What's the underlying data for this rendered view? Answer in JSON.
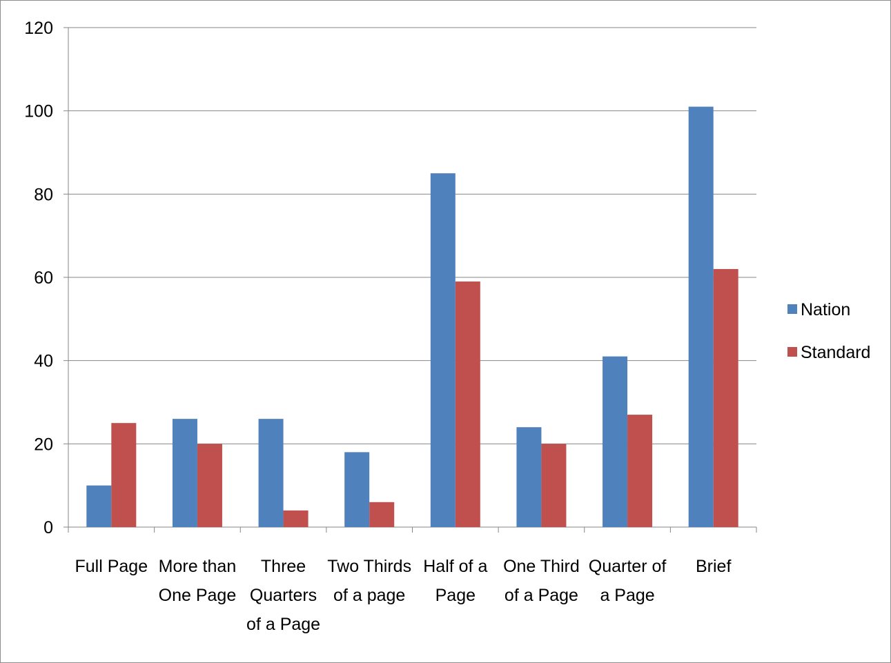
{
  "chart_data": {
    "type": "bar",
    "categories": [
      [
        "Full Page"
      ],
      [
        "More than",
        "One Page"
      ],
      [
        "Three",
        "Quarters",
        "of a Page"
      ],
      [
        "Two Thirds",
        "of a page"
      ],
      [
        "Half of a",
        "Page"
      ],
      [
        "One Third",
        "of a Page"
      ],
      [
        "Quarter of",
        "a Page"
      ],
      [
        "Brief"
      ]
    ],
    "series": [
      {
        "name": "Nation",
        "color": "#4f81bd",
        "values": [
          10,
          26,
          26,
          18,
          85,
          24,
          41,
          101
        ]
      },
      {
        "name": "Standard",
        "color": "#c0504d",
        "values": [
          25,
          20,
          4,
          6,
          59,
          20,
          27,
          62
        ]
      }
    ],
    "ylim": [
      0,
      120
    ],
    "yticks": [
      0,
      20,
      40,
      60,
      80,
      100,
      120
    ],
    "grid": true,
    "legend_position": "right",
    "title": "",
    "xlabel": "",
    "ylabel": ""
  }
}
